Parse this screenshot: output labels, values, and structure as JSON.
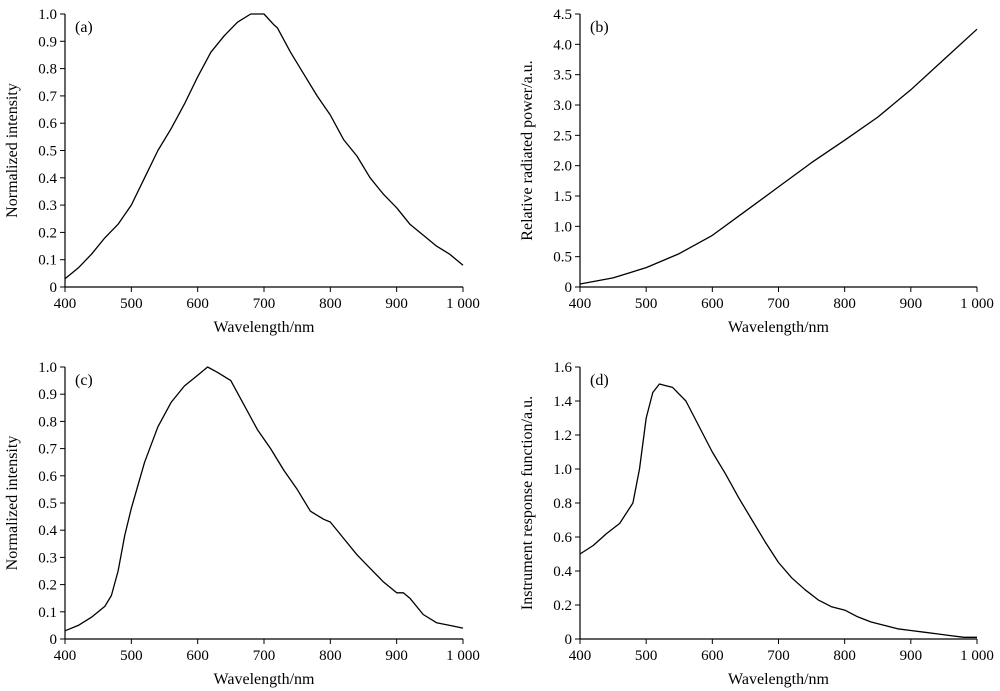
{
  "chart_data": [
    {
      "type": "line",
      "panel_label": "(a)",
      "xlabel": "Wavelength/nm",
      "ylabel": "Normalized intensity",
      "xlim": [
        400,
        1000
      ],
      "ylim": [
        0,
        1.0
      ],
      "x_ticks": [
        400,
        500,
        600,
        700,
        800,
        900,
        1000
      ],
      "x_tick_labels": [
        "400",
        "500",
        "600",
        "700",
        "800",
        "900",
        "1 000"
      ],
      "y_ticks": [
        0,
        0.1,
        0.2,
        0.3,
        0.4,
        0.5,
        0.6,
        0.7,
        0.8,
        0.9,
        1.0
      ],
      "y_tick_labels": [
        "0",
        "0.1",
        "0.2",
        "0.3",
        "0.4",
        "0.5",
        "0.6",
        "0.7",
        "0.8",
        "0.9",
        "1.0"
      ],
      "grid": false,
      "series": [
        {
          "x": [
            400,
            420,
            440,
            460,
            480,
            500,
            520,
            540,
            560,
            580,
            600,
            620,
            640,
            660,
            680,
            700,
            715,
            720,
            740,
            760,
            780,
            800,
            820,
            840,
            860,
            880,
            900,
            920,
            940,
            960,
            980,
            1000
          ],
          "y": [
            0.03,
            0.07,
            0.12,
            0.18,
            0.23,
            0.3,
            0.4,
            0.5,
            0.58,
            0.67,
            0.77,
            0.86,
            0.92,
            0.97,
            1.0,
            1.0,
            0.96,
            0.95,
            0.86,
            0.78,
            0.7,
            0.63,
            0.54,
            0.48,
            0.4,
            0.34,
            0.29,
            0.23,
            0.19,
            0.15,
            0.12,
            0.08
          ]
        }
      ]
    },
    {
      "type": "line",
      "panel_label": "(b)",
      "xlabel": "Wavelength/nm",
      "ylabel": "Relative radiated power/a.u.",
      "xlim": [
        400,
        1000
      ],
      "ylim": [
        0,
        4.5
      ],
      "x_ticks": [
        400,
        500,
        600,
        700,
        800,
        900,
        1000
      ],
      "x_tick_labels": [
        "400",
        "500",
        "600",
        "700",
        "800",
        "900",
        "1 000"
      ],
      "y_ticks": [
        0,
        0.5,
        1.0,
        1.5,
        2.0,
        2.5,
        3.0,
        3.5,
        4.0,
        4.5
      ],
      "y_tick_labels": [
        "0",
        "0.5",
        "1.0",
        "1.5",
        "2.0",
        "2.5",
        "3.0",
        "3.5",
        "4.0",
        "4.5"
      ],
      "grid": false,
      "series": [
        {
          "x": [
            400,
            450,
            500,
            550,
            600,
            650,
            700,
            750,
            800,
            850,
            900,
            950,
            1000
          ],
          "y": [
            0.05,
            0.15,
            0.32,
            0.55,
            0.85,
            1.25,
            1.65,
            2.05,
            2.42,
            2.8,
            3.25,
            3.75,
            4.25
          ]
        }
      ]
    },
    {
      "type": "line",
      "panel_label": "(c)",
      "xlabel": "Wavelength/nm",
      "ylabel": "Normalized intensity",
      "xlim": [
        400,
        1000
      ],
      "ylim": [
        0,
        1.0
      ],
      "x_ticks": [
        400,
        500,
        600,
        700,
        800,
        900,
        1000
      ],
      "x_tick_labels": [
        "400",
        "500",
        "600",
        "700",
        "800",
        "900",
        "1 000"
      ],
      "y_ticks": [
        0,
        0.1,
        0.2,
        0.3,
        0.4,
        0.5,
        0.6,
        0.7,
        0.8,
        0.9,
        1.0
      ],
      "y_tick_labels": [
        "0",
        "0.1",
        "0.2",
        "0.3",
        "0.4",
        "0.5",
        "0.6",
        "0.7",
        "0.8",
        "0.9",
        "1.0"
      ],
      "grid": false,
      "series": [
        {
          "x": [
            400,
            420,
            440,
            460,
            470,
            480,
            490,
            500,
            520,
            540,
            560,
            580,
            600,
            615,
            630,
            650,
            670,
            690,
            710,
            730,
            750,
            770,
            790,
            800,
            820,
            840,
            860,
            880,
            900,
            910,
            920,
            940,
            960,
            980,
            1000
          ],
          "y": [
            0.03,
            0.05,
            0.08,
            0.12,
            0.16,
            0.25,
            0.38,
            0.48,
            0.65,
            0.78,
            0.87,
            0.93,
            0.97,
            1.0,
            0.98,
            0.95,
            0.86,
            0.77,
            0.7,
            0.62,
            0.55,
            0.47,
            0.44,
            0.43,
            0.37,
            0.31,
            0.26,
            0.21,
            0.17,
            0.17,
            0.15,
            0.09,
            0.06,
            0.05,
            0.04
          ]
        }
      ]
    },
    {
      "type": "line",
      "panel_label": "(d)",
      "xlabel": "Wavelength/nm",
      "ylabel": "Instrument response function/a.u.",
      "xlim": [
        400,
        1000
      ],
      "ylim": [
        0,
        1.6
      ],
      "x_ticks": [
        400,
        500,
        600,
        700,
        800,
        900,
        1000
      ],
      "x_tick_labels": [
        "400",
        "500",
        "600",
        "700",
        "800",
        "900",
        "1 000"
      ],
      "y_ticks": [
        0,
        0.2,
        0.4,
        0.6,
        0.8,
        1.0,
        1.2,
        1.4,
        1.6
      ],
      "y_tick_labels": [
        "0",
        "0.2",
        "0.4",
        "0.6",
        "0.8",
        "1.0",
        "1.2",
        "1.4",
        "1.6"
      ],
      "grid": false,
      "series": [
        {
          "x": [
            400,
            420,
            440,
            460,
            480,
            490,
            500,
            510,
            520,
            530,
            540,
            560,
            580,
            600,
            620,
            640,
            660,
            680,
            700,
            720,
            740,
            760,
            780,
            800,
            820,
            840,
            860,
            880,
            900,
            920,
            940,
            960,
            980,
            1000
          ],
          "y": [
            0.5,
            0.55,
            0.62,
            0.68,
            0.8,
            1.0,
            1.3,
            1.45,
            1.5,
            1.49,
            1.48,
            1.4,
            1.25,
            1.1,
            0.97,
            0.83,
            0.7,
            0.57,
            0.45,
            0.36,
            0.29,
            0.23,
            0.19,
            0.17,
            0.13,
            0.1,
            0.08,
            0.06,
            0.05,
            0.04,
            0.03,
            0.02,
            0.01,
            0.01
          ]
        }
      ]
    }
  ]
}
